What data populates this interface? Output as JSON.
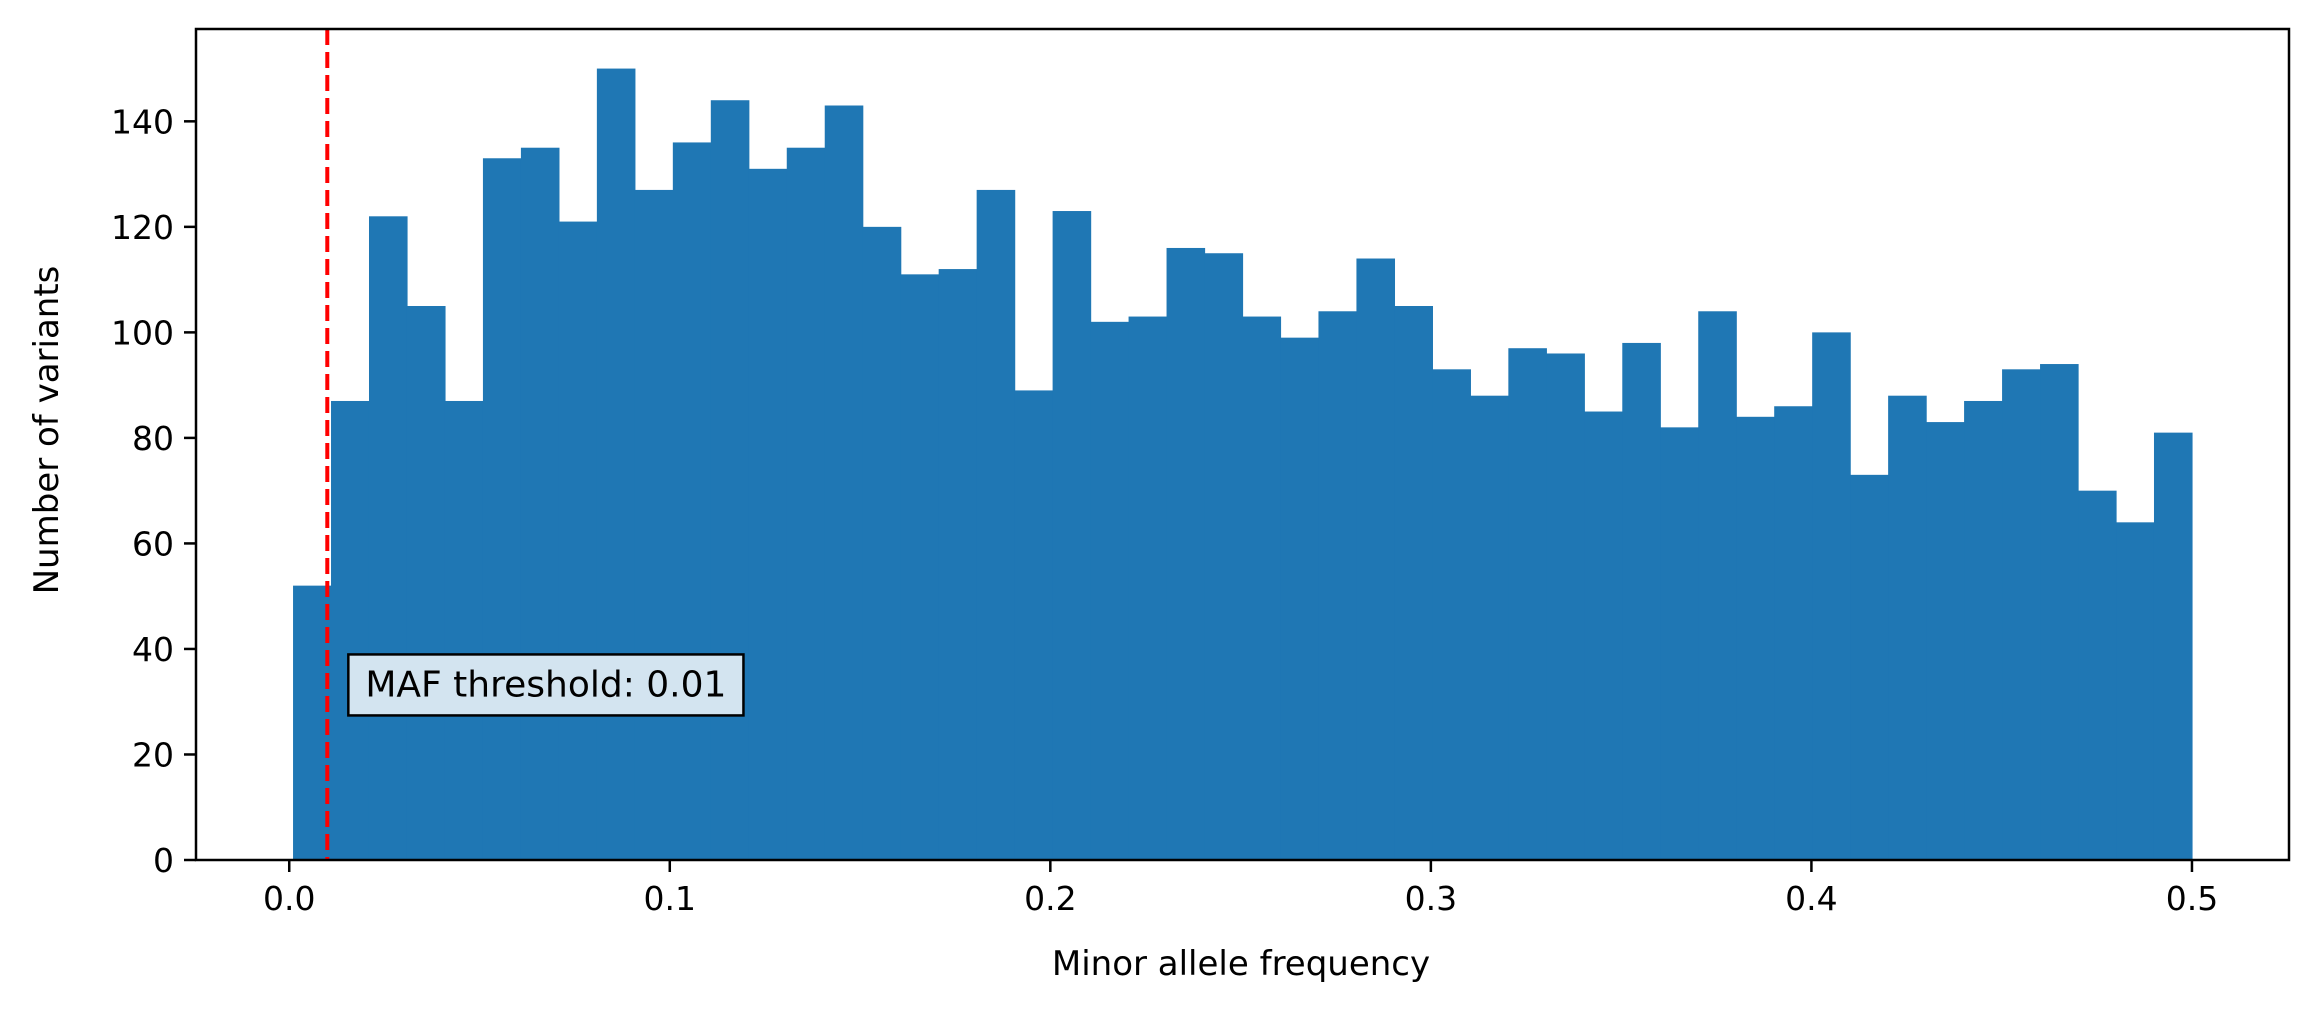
{
  "chart_data": {
    "type": "bar",
    "title": "",
    "xlabel": "Minor allele frequency",
    "ylabel": "Number of variants",
    "xlim": [
      -0.0245,
      0.5255
    ],
    "ylim": [
      0,
      157.5
    ],
    "x_ticks": [
      0.0,
      0.1,
      0.2,
      0.3,
      0.4,
      0.5
    ],
    "x_tick_labels": [
      "0.0",
      "0.1",
      "0.2",
      "0.3",
      "0.4",
      "0.5"
    ],
    "y_ticks": [
      0,
      20,
      40,
      60,
      80,
      100,
      120,
      140
    ],
    "y_tick_labels": [
      "0",
      "20",
      "40",
      "60",
      "80",
      "100",
      "120",
      "140"
    ],
    "bins_start": 0.001,
    "bins_end": 0.5,
    "values": [
      52,
      87,
      122,
      105,
      87,
      133,
      135,
      121,
      150,
      127,
      136,
      144,
      131,
      135,
      143,
      120,
      111,
      112,
      127,
      89,
      123,
      102,
      103,
      116,
      115,
      103,
      99,
      104,
      114,
      105,
      93,
      88,
      97,
      96,
      85,
      98,
      82,
      104,
      84,
      86,
      100,
      73,
      88,
      83,
      87,
      93,
      94,
      70,
      64,
      81
    ],
    "bar_color": "#1f77b4",
    "threshold": {
      "value": 0.01,
      "color": "#ff0000",
      "label": "MAF threshold: 0.01",
      "label_x": 0.02,
      "label_y": 31,
      "box_fill": "#d3e4f0"
    },
    "grid": false,
    "legend": "none"
  }
}
